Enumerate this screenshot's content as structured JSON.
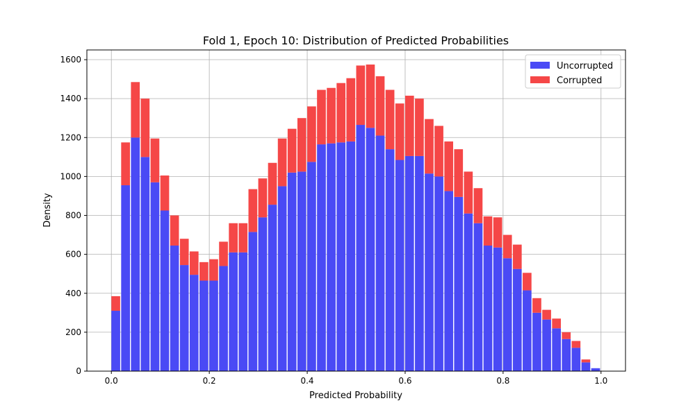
{
  "chart_data": {
    "type": "bar",
    "stacked": true,
    "title": "Fold 1, Epoch 10: Distribution of Predicted Probabilities",
    "xlabel": "Predicted Probability",
    "ylabel": "Density",
    "xlim": [
      -0.05,
      1.05
    ],
    "ylim": [
      0,
      1650
    ],
    "xticks": [
      0.0,
      0.2,
      0.4,
      0.6,
      0.8,
      1.0
    ],
    "xtick_labels": [
      "0.0",
      "0.2",
      "0.4",
      "0.6",
      "0.8",
      "1.0"
    ],
    "yticks": [
      0,
      200,
      400,
      600,
      800,
      1000,
      1200,
      1400,
      1600
    ],
    "ytick_labels": [
      "0",
      "200",
      "400",
      "600",
      "800",
      "1000",
      "1200",
      "1400",
      "1600"
    ],
    "grid": true,
    "legend_position": "upper-right",
    "bin_width": 0.02,
    "bin_starts": [
      0.0,
      0.02,
      0.04,
      0.06,
      0.08,
      0.1,
      0.12,
      0.14,
      0.16,
      0.18,
      0.2,
      0.22,
      0.24,
      0.26,
      0.28,
      0.3,
      0.32,
      0.34,
      0.36,
      0.38,
      0.4,
      0.42,
      0.44,
      0.46,
      0.48,
      0.5,
      0.52,
      0.54,
      0.56,
      0.58,
      0.6,
      0.62,
      0.64,
      0.66,
      0.68,
      0.7,
      0.72,
      0.74,
      0.76,
      0.78,
      0.8,
      0.82,
      0.84,
      0.86,
      0.88,
      0.9,
      0.92,
      0.94,
      0.96,
      0.98
    ],
    "series": [
      {
        "name": "Uncorrupted",
        "color": "#4a4af5",
        "values": [
          310,
          955,
          1200,
          1100,
          970,
          825,
          645,
          545,
          495,
          465,
          465,
          540,
          610,
          610,
          715,
          790,
          855,
          950,
          1020,
          1025,
          1075,
          1165,
          1170,
          1175,
          1180,
          1265,
          1250,
          1210,
          1140,
          1085,
          1105,
          1105,
          1015,
          1000,
          925,
          895,
          810,
          760,
          645,
          635,
          580,
          525,
          415,
          300,
          265,
          220,
          165,
          120,
          45,
          15
        ]
      },
      {
        "name": "Corrupted",
        "color": "#f54747",
        "values": [
          75,
          220,
          285,
          300,
          225,
          180,
          155,
          135,
          120,
          95,
          110,
          125,
          150,
          150,
          220,
          200,
          215,
          245,
          225,
          275,
          285,
          280,
          285,
          305,
          325,
          305,
          325,
          305,
          305,
          290,
          310,
          295,
          280,
          260,
          255,
          245,
          215,
          180,
          150,
          155,
          120,
          125,
          90,
          75,
          50,
          50,
          35,
          35,
          15,
          0
        ]
      }
    ]
  }
}
